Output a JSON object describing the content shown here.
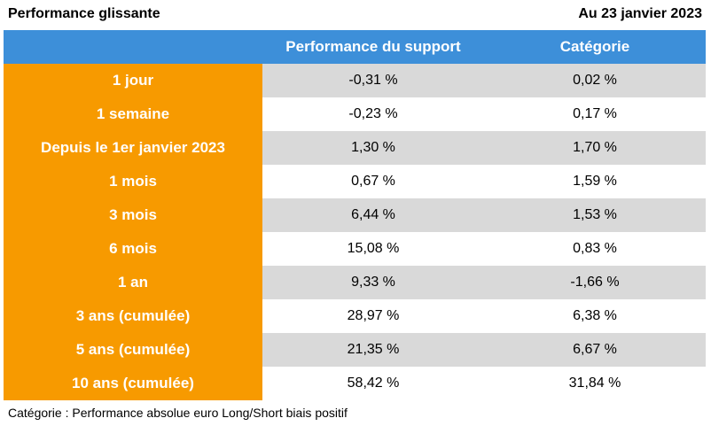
{
  "header": {
    "title": "Performance glissante",
    "date": "Au 23 janvier 2023"
  },
  "table": {
    "columns": [
      "",
      "Performance du support",
      "Catégorie"
    ],
    "rows": [
      {
        "label": "1 jour",
        "support": "-0,31 %",
        "categorie": "0,02 %"
      },
      {
        "label": "1 semaine",
        "support": "-0,23 %",
        "categorie": "0,17 %"
      },
      {
        "label": "Depuis le 1er janvier 2023",
        "support": "1,30 %",
        "categorie": "1,70 %"
      },
      {
        "label": "1 mois",
        "support": "0,67 %",
        "categorie": "1,59 %"
      },
      {
        "label": "3 mois",
        "support": "6,44 %",
        "categorie": "1,53 %"
      },
      {
        "label": "6 mois",
        "support": "15,08 %",
        "categorie": "0,83 %"
      },
      {
        "label": "1 an",
        "support": "9,33 %",
        "categorie": "-1,66 %"
      },
      {
        "label": "3 ans (cumulée)",
        "support": "28,97 %",
        "categorie": "6,38 %"
      },
      {
        "label": "5 ans (cumulée)",
        "support": "21,35 %",
        "categorie": "6,67 %"
      },
      {
        "label": "10 ans (cumulée)",
        "support": "58,42 %",
        "categorie": "31,84 %"
      }
    ]
  },
  "footnote": "Catégorie : Performance absolue euro Long/Short biais positif",
  "colors": {
    "header_bg": "#3d8fd9",
    "label_bg": "#f79a00",
    "stripe_bg": "#d9d9d9"
  }
}
